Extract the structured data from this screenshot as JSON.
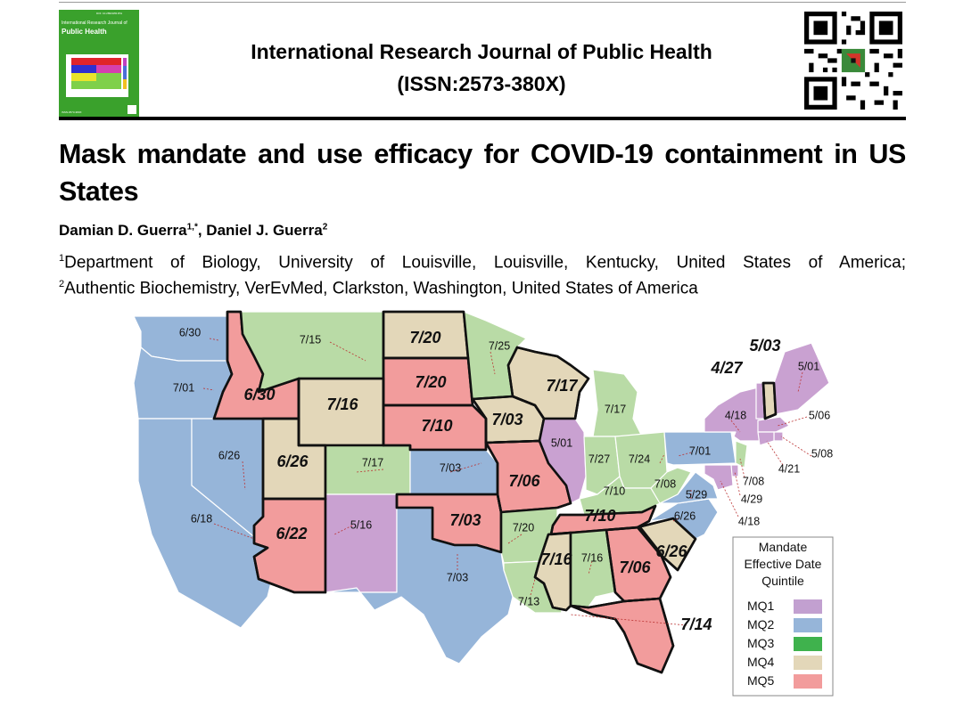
{
  "journal": {
    "name": "International Research Journal of Public Health",
    "issn": "(ISSN:2573-380X)"
  },
  "cover": {
    "doi": "DOI: 10.28933/IRJPH",
    "journal_line1": "International Research Journal of",
    "journal_line2": "Public Health",
    "issn": "ISSN:2573-380X"
  },
  "paper": {
    "title": "Mask mandate and use efficacy for COVID-19 containment in US States",
    "authors": [
      {
        "name": "Damian D. Guerra",
        "sup": "1,*"
      },
      {
        "name": "Daniel J. Guerra",
        "sup": "2"
      }
    ],
    "author_separator": ", ",
    "affiliations": [
      {
        "sup": "1",
        "text": "Department of Biology, University of Louisville, Louisville, Kentucky, United States of America;"
      },
      {
        "sup": "2",
        "text": "Authentic Biochemistry, VerEvMed, Clarkston, Washington, United States of America"
      }
    ]
  },
  "figure": {
    "colors": {
      "MQ1": "#c9a1d1",
      "MQ2": "#96b5d9",
      "MQ3": "#b9dba6",
      "MQ4": "#e3d7b9",
      "MQ5": "#f29c9c"
    },
    "legend": {
      "title_lines": [
        "Mandate",
        "Effective Date",
        "Quintile"
      ],
      "items": [
        {
          "label": "MQ1",
          "color": "#c2a0d0"
        },
        {
          "label": "MQ2",
          "color": "#96b5d9"
        },
        {
          "label": "MQ3",
          "color": "#3fb24d"
        },
        {
          "label": "MQ4",
          "color": "#e3d7b9"
        },
        {
          "label": "MQ5",
          "color": "#f29c9c"
        }
      ]
    },
    "states": [
      {
        "id": "WA",
        "date": "6/30",
        "q": "MQ2"
      },
      {
        "id": "OR",
        "date": "7/01",
        "q": "MQ2"
      },
      {
        "id": "CA",
        "date": "6/18",
        "q": "MQ2"
      },
      {
        "id": "NV",
        "date": "6/26",
        "q": "MQ2"
      },
      {
        "id": "ID",
        "date": "6/30",
        "q": "MQ5"
      },
      {
        "id": "MT",
        "date": "7/15",
        "q": "MQ3"
      },
      {
        "id": "WY",
        "date": "7/16",
        "q": "MQ4"
      },
      {
        "id": "UT",
        "date": "6/26",
        "q": "MQ4"
      },
      {
        "id": "AZ",
        "date": "6/22",
        "q": "MQ5"
      },
      {
        "id": "CO",
        "date": "7/17",
        "q": "MQ3"
      },
      {
        "id": "NM",
        "date": "5/16",
        "q": "MQ1"
      },
      {
        "id": "ND",
        "date": "7/20",
        "q": "MQ4"
      },
      {
        "id": "SD",
        "date": "7/20",
        "q": "MQ5"
      },
      {
        "id": "NE",
        "date": "7/10",
        "q": "MQ5"
      },
      {
        "id": "KS",
        "date": "7/03",
        "q": "MQ2"
      },
      {
        "id": "OK",
        "date": "7/03",
        "q": "MQ5"
      },
      {
        "id": "TX",
        "date": "7/03",
        "q": "MQ2"
      },
      {
        "id": "MN",
        "date": "7/25",
        "q": "MQ3"
      },
      {
        "id": "IA",
        "date": "7/03",
        "q": "MQ4"
      },
      {
        "id": "MO",
        "date": "7/06",
        "q": "MQ5"
      },
      {
        "id": "AR",
        "date": "7/20",
        "q": "MQ3"
      },
      {
        "id": "LA",
        "date": "7/13",
        "q": "MQ3"
      },
      {
        "id": "WI",
        "date": "7/17",
        "q": "MQ4"
      },
      {
        "id": "IL",
        "date": "5/01",
        "q": "MQ1"
      },
      {
        "id": "MI",
        "date": "7/17",
        "q": "MQ3"
      },
      {
        "id": "IN",
        "date": "7/27",
        "q": "MQ3"
      },
      {
        "id": "OH",
        "date": "7/24",
        "q": "MQ3"
      },
      {
        "id": "KY",
        "date": "7/10",
        "q": "MQ3"
      },
      {
        "id": "TN",
        "date": "7/10",
        "q": "MQ5"
      },
      {
        "id": "MS",
        "date": "7/16",
        "q": "MQ4"
      },
      {
        "id": "AL",
        "date": "7/16",
        "q": "MQ3"
      },
      {
        "id": "GA",
        "date": "7/06",
        "q": "MQ5"
      },
      {
        "id": "FL",
        "date": "7/14",
        "q": "MQ5"
      },
      {
        "id": "SC",
        "date": "6/26",
        "q": "MQ4"
      },
      {
        "id": "NC",
        "date": "6/26",
        "q": "MQ2"
      },
      {
        "id": "VA",
        "date": "5/29",
        "q": "MQ2"
      },
      {
        "id": "WV",
        "date": "7/08",
        "q": "MQ3"
      },
      {
        "id": "PA",
        "date": "7/01",
        "q": "MQ2"
      },
      {
        "id": "NY",
        "date": "4/18",
        "q": "MQ1"
      },
      {
        "id": "VT",
        "date": "4/27",
        "q": "MQ1"
      },
      {
        "id": "NH",
        "date": "5/03",
        "q": "MQ4"
      },
      {
        "id": "ME",
        "date": "5/01",
        "q": "MQ1"
      },
      {
        "id": "MA",
        "date": "5/06",
        "q": "MQ1"
      },
      {
        "id": "RI",
        "date": "5/08",
        "q": "MQ1"
      },
      {
        "id": "CT",
        "date": "4/21",
        "q": "MQ1"
      },
      {
        "id": "NJ",
        "date": "7/08",
        "q": "MQ3"
      },
      {
        "id": "DE",
        "date": "4/29",
        "q": "MQ1"
      },
      {
        "id": "MD",
        "date": "4/18",
        "q": "MQ1"
      }
    ]
  }
}
